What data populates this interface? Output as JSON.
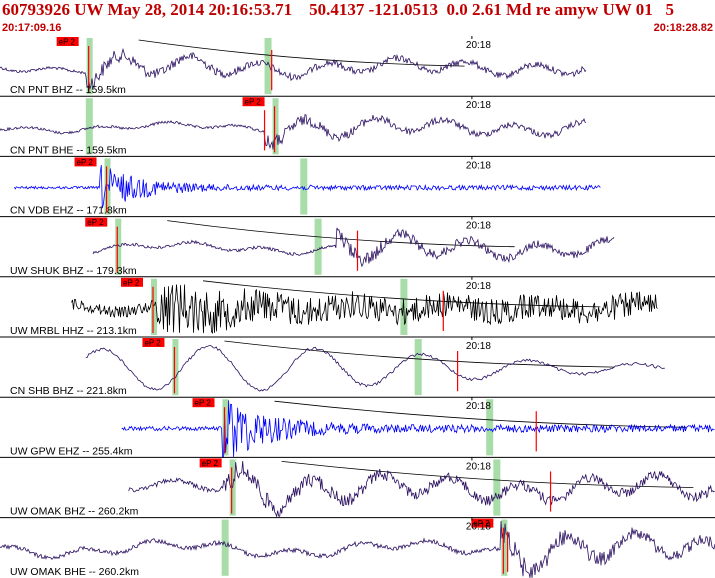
{
  "header": {
    "title": "60793926 UW May 28, 2014 20:16:53.71    50.4137 -121.0513  0.0 2.61 Md re amyw UW 01   5",
    "start_time": "20:17:09.16",
    "end_time": "20:18:28.82"
  },
  "colors": {
    "title": "#c00000",
    "divider": "#000000",
    "pick_box": "#ff0000",
    "pick_line": "#ff0000",
    "s_window": "#a8dca8",
    "curve": "#000000"
  },
  "pick_label": "eP 2",
  "time_tick_label": "20:18",
  "traces": [
    {
      "label": "CN PNT BHZ -- 159.5km",
      "color": "#2a1060",
      "start": 0.0,
      "end": 0.82,
      "amp": 13,
      "style": "lowfreq",
      "burst": 0.12,
      "pick_time": 0.11,
      "s_time": 0.37,
      "red_line": 0.38,
      "has_curve": true
    },
    {
      "label": "CN PNT BHE -- 159.5km",
      "color": "#2a1060",
      "start": 0.0,
      "end": 0.82,
      "amp": 12,
      "style": "lowfreq",
      "burst": 0.37,
      "pick_time": 0.37,
      "s_time": 0.12,
      "red_line": 0.37,
      "has_curve": false
    },
    {
      "label": "CN VDB EHZ -- 171.8km",
      "color": "#0000ff",
      "start": 0.02,
      "end": 0.84,
      "amp": 16,
      "style": "highfreq",
      "burst": 0.14,
      "pick_time": 0.135,
      "s_time": 0.42,
      "red_line": null,
      "has_curve": false
    },
    {
      "label": "UW SHUK BHZ -- 179.3km",
      "color": "#2a1060",
      "start": 0.13,
      "end": 0.86,
      "amp": 14,
      "style": "lowfreq",
      "burst": 0.47,
      "pick_time": 0.15,
      "s_time": 0.44,
      "red_line": 0.5,
      "has_curve": true
    },
    {
      "label": "UW MRBL HHZ -- 213.1km",
      "color": "#000000",
      "start": 0.1,
      "end": 0.92,
      "amp": 18,
      "style": "noisy",
      "burst": 0.22,
      "pick_time": 0.2,
      "s_time": 0.56,
      "red_line": 0.62,
      "has_curve": true
    },
    {
      "label": "CN SHB BHZ -- 221.8km",
      "color": "#2a1060",
      "start": 0.12,
      "end": 0.93,
      "amp": 22,
      "style": "sine",
      "burst": 0.24,
      "pick_time": 0.23,
      "s_time": 0.58,
      "red_line": 0.64,
      "has_curve": true
    },
    {
      "label": "UW GPW EHZ -- 255.4km",
      "color": "#0000ff",
      "start": 0.17,
      "end": 1.0,
      "amp": 26,
      "style": "highfreq",
      "burst": 0.31,
      "pick_time": 0.3,
      "s_time": 0.68,
      "red_line": 0.75,
      "has_curve": true
    },
    {
      "label": "UW OMAK BHZ -- 260.2km",
      "color": "#2a1060",
      "start": 0.18,
      "end": 1.0,
      "amp": 20,
      "style": "lowfreq",
      "burst": 0.31,
      "pick_time": 0.31,
      "s_time": 0.69,
      "red_line": 0.77,
      "has_curve": true
    },
    {
      "label": "UW OMAK BHE -- 260.2km",
      "color": "#2a1060",
      "start": 0.0,
      "end": 1.0,
      "amp": 20,
      "style": "lowfreq",
      "burst": 0.7,
      "pick_time": 0.69,
      "s_time": 0.31,
      "red_line": 0.71,
      "has_curve": false
    }
  ],
  "tick_time": 0.66
}
